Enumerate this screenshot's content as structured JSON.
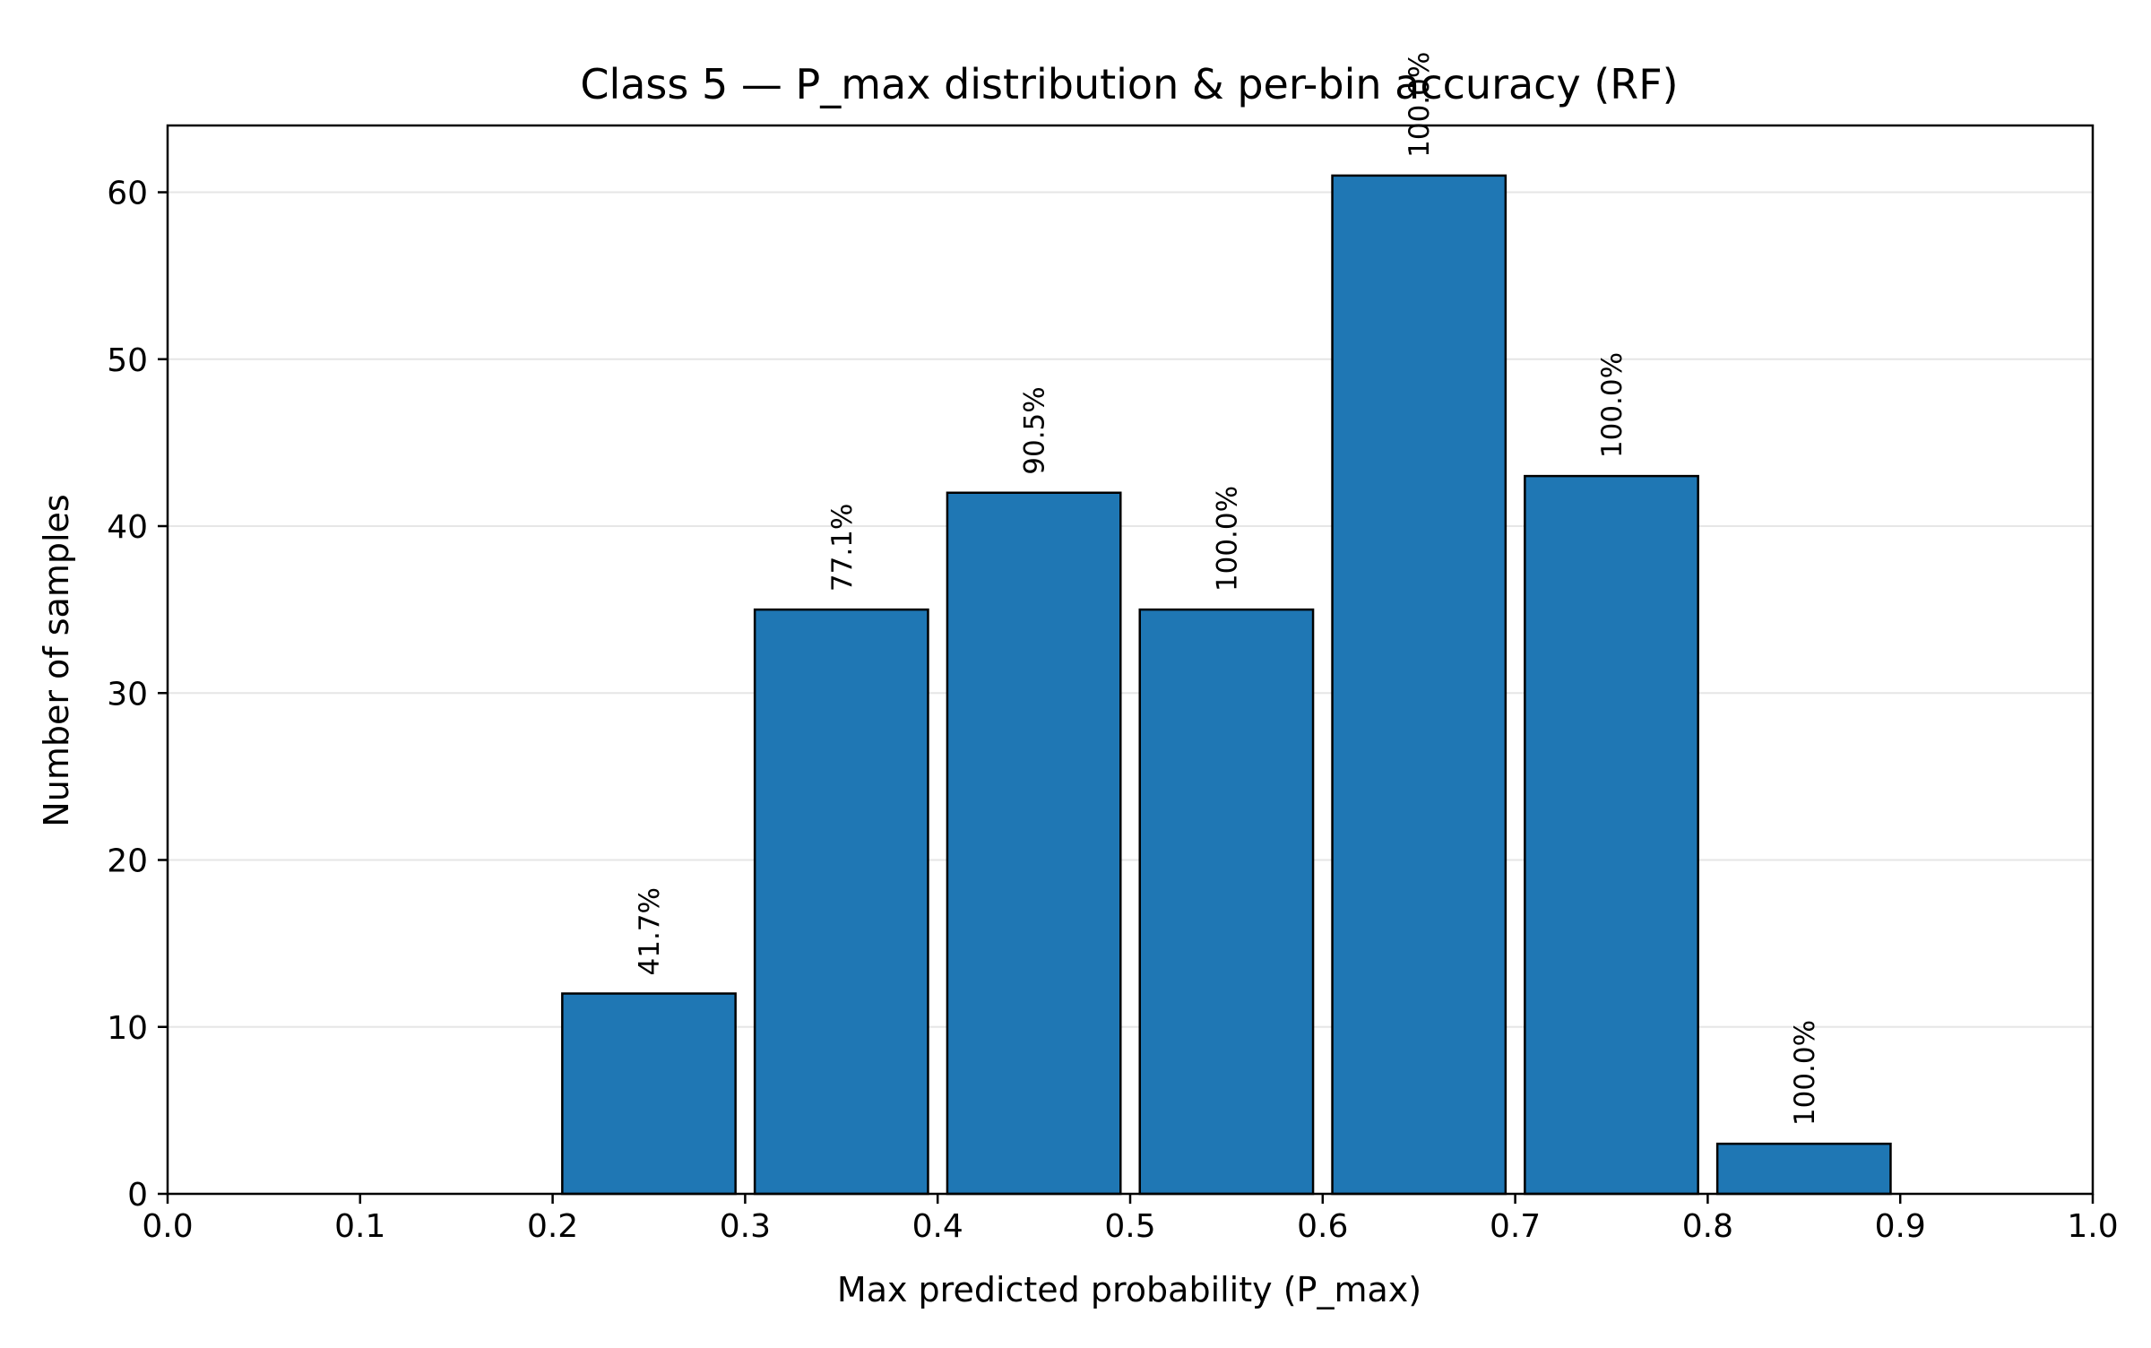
{
  "chart_data": {
    "type": "bar",
    "title": "Class 5 — P_max distribution & per-bin accuracy (RF)",
    "xlabel": "Max predicted probability (P_max)",
    "ylabel": "Number of samples",
    "xlim": [
      0.0,
      1.0
    ],
    "ylim": [
      0,
      64
    ],
    "x_ticks": [
      "0.0",
      "0.1",
      "0.2",
      "0.3",
      "0.4",
      "0.5",
      "0.6",
      "0.7",
      "0.8",
      "0.9",
      "1.0"
    ],
    "y_ticks": [
      "0",
      "10",
      "20",
      "30",
      "40",
      "50",
      "60"
    ],
    "bins": [
      {
        "start": 0.0,
        "end": 0.1,
        "count": 0,
        "accuracy_label": ""
      },
      {
        "start": 0.1,
        "end": 0.2,
        "count": 0,
        "accuracy_label": ""
      },
      {
        "start": 0.2,
        "end": 0.3,
        "count": 12,
        "accuracy_label": "41.7%"
      },
      {
        "start": 0.3,
        "end": 0.4,
        "count": 35,
        "accuracy_label": "77.1%"
      },
      {
        "start": 0.4,
        "end": 0.5,
        "count": 42,
        "accuracy_label": "90.5%"
      },
      {
        "start": 0.5,
        "end": 0.6,
        "count": 35,
        "accuracy_label": "100.0%"
      },
      {
        "start": 0.6,
        "end": 0.7,
        "count": 61,
        "accuracy_label": "100.0%"
      },
      {
        "start": 0.7,
        "end": 0.8,
        "count": 43,
        "accuracy_label": "100.0%"
      },
      {
        "start": 0.8,
        "end": 0.9,
        "count": 3,
        "accuracy_label": "100.0%"
      },
      {
        "start": 0.9,
        "end": 1.0,
        "count": 0,
        "accuracy_label": ""
      }
    ],
    "grid": {
      "y": true,
      "x": false
    },
    "colors": {
      "bar": "#1f77b4",
      "edge": "#000000",
      "grid": "#e6e6e6"
    }
  }
}
